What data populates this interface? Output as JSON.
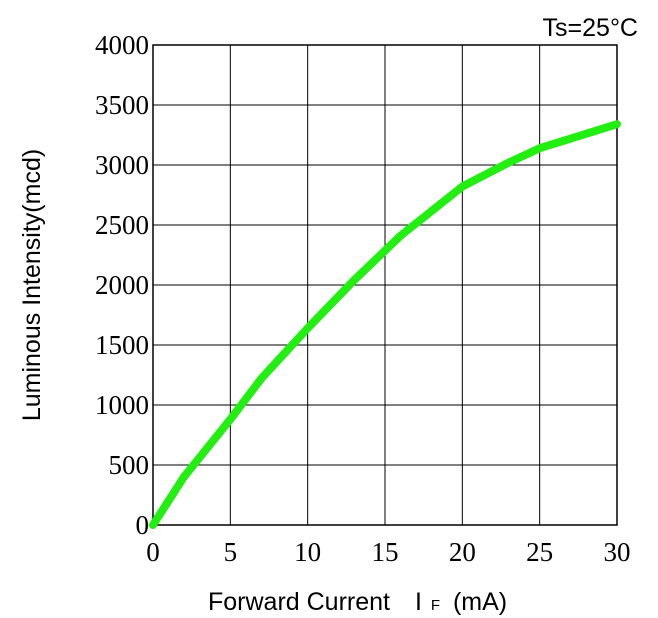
{
  "chart_data": {
    "type": "line",
    "annotation": "Ts=25°C",
    "xlabel_main": "Forward Current",
    "xlabel_symbol": "I",
    "xlabel_subscript": "F",
    "xlabel_unit": "(mA)",
    "ylabel": "Luminous Intensity(mcd)",
    "xlim": [
      0,
      30
    ],
    "ylim": [
      0,
      4000
    ],
    "x_ticks": [
      "0",
      "5",
      "10",
      "15",
      "20",
      "25",
      "30"
    ],
    "y_ticks": [
      "0",
      "500",
      "1000",
      "1500",
      "2000",
      "2500",
      "3000",
      "3500",
      "4000"
    ],
    "grid": true,
    "series": [
      {
        "color": "#22ee11",
        "x": [
          0,
          2,
          5,
          7,
          10,
          13,
          16,
          20,
          23,
          25,
          28,
          30
        ],
        "y": [
          0,
          400,
          880,
          1220,
          1640,
          2040,
          2410,
          2820,
          3020,
          3140,
          3260,
          3340
        ]
      }
    ]
  }
}
